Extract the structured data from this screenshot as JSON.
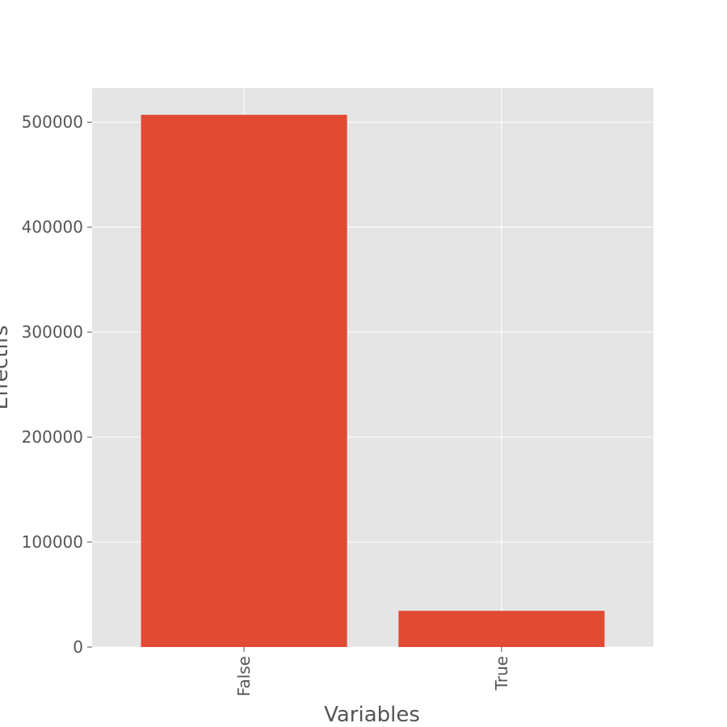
{
  "chart_data": {
    "type": "bar",
    "categories": [
      "False",
      "True"
    ],
    "values": [
      507000,
      34500
    ],
    "title": "",
    "xlabel": "Variables",
    "ylabel": "Effectifs",
    "ylim": [
      0,
      532500
    ],
    "yticks": [
      0,
      100000,
      200000,
      300000,
      400000,
      500000
    ],
    "grid": true,
    "colors": {
      "bar": "#E24A33",
      "plot_background": "#E5E5E5",
      "grid": "#FFFFFF",
      "text": "#555555"
    }
  }
}
